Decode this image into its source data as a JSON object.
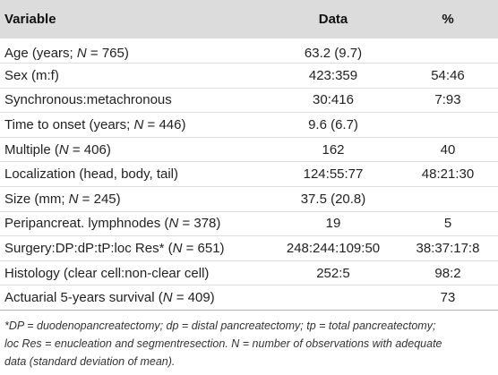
{
  "table": {
    "headers": [
      "Variable",
      "Data",
      "%"
    ],
    "rows": [
      {
        "variable_pre": "Age (years; ",
        "variable_n": "N",
        "variable_post": " = 765)",
        "data": "63.2 (9.7)",
        "pct": ""
      },
      {
        "variable_pre": "Sex (m:f)",
        "variable_n": "",
        "variable_post": "",
        "data": "423:359",
        "pct": "54:46"
      },
      {
        "variable_pre": "Synchronous:metachronous",
        "variable_n": "",
        "variable_post": "",
        "data": "30:416",
        "pct": "7:93"
      },
      {
        "variable_pre": "Time to onset (years; ",
        "variable_n": "N",
        "variable_post": " = 446)",
        "data": "9.6 (6.7)",
        "pct": ""
      },
      {
        "variable_pre": "Multiple (",
        "variable_n": "N",
        "variable_post": " = 406)",
        "data": "162",
        "pct": "40"
      },
      {
        "variable_pre": "Localization (head, body, tail)",
        "variable_n": "",
        "variable_post": "",
        "data": "124:55:77",
        "pct": "48:21:30"
      },
      {
        "variable_pre": "Size (mm; ",
        "variable_n": "N",
        "variable_post": " = 245)",
        "data": "37.5 (20.8)",
        "pct": ""
      },
      {
        "variable_pre": "Peripancreat. lymphnodes (",
        "variable_n": "N",
        "variable_post": " = 378)",
        "data": "19",
        "pct": "5"
      },
      {
        "variable_pre": "Surgery:DP:dP:tP:loc Res* (",
        "variable_n": "N",
        "variable_post": " = 651)",
        "data": "248:244:109:50",
        "pct": "38:37:17:8"
      },
      {
        "variable_pre": "Histology (clear cell:non-clear cell)",
        "variable_n": "",
        "variable_post": "",
        "data": "252:5",
        "pct": "98:2"
      },
      {
        "variable_pre": "Actuarial 5-years survival (",
        "variable_n": "N",
        "variable_post": " = 409)",
        "data": "",
        "pct": "73"
      }
    ]
  },
  "footnote": {
    "line1": "*DP = duodenopancreatectomy; dp = distal pancreatectomy; tp = total pancreatectomy;",
    "line2": "loc Res = enucleation and segmentresection. N = number of observations with adequate",
    "line3": "data (standard deviation of mean)."
  }
}
